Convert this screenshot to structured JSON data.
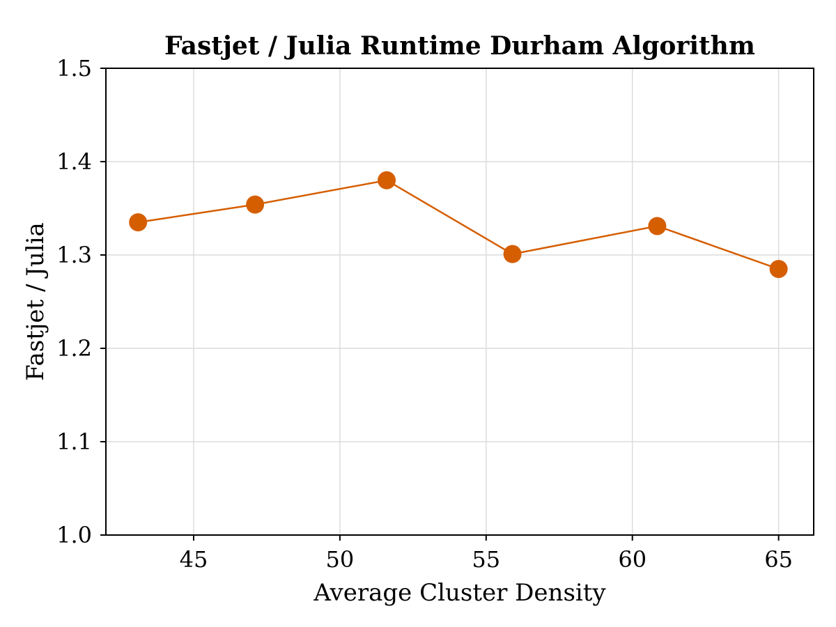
{
  "chart_data": {
    "type": "line",
    "title": "Fastjet / Julia Runtime Durham Algorithm",
    "xlabel": "Average Cluster Density",
    "ylabel": "Fastjet / Julia",
    "xlim": [
      42,
      66.2
    ],
    "ylim": [
      1.0,
      1.5
    ],
    "x_ticks": [
      45,
      50,
      55,
      60,
      65
    ],
    "y_ticks": [
      1.0,
      1.1,
      1.2,
      1.3,
      1.4,
      1.5
    ],
    "x_tick_labels": [
      "45",
      "50",
      "55",
      "60",
      "65"
    ],
    "y_tick_labels": [
      "1.0",
      "1.1",
      "1.2",
      "1.3",
      "1.4",
      "1.5"
    ],
    "grid": true,
    "series": [
      {
        "color": "#d55e00",
        "marker": "circle",
        "points": [
          {
            "x": 43.1,
            "y": 1.335
          },
          {
            "x": 47.1,
            "y": 1.354
          },
          {
            "x": 51.6,
            "y": 1.38
          },
          {
            "x": 55.9,
            "y": 1.301
          },
          {
            "x": 60.85,
            "y": 1.331
          },
          {
            "x": 65.0,
            "y": 1.285
          }
        ]
      }
    ]
  }
}
